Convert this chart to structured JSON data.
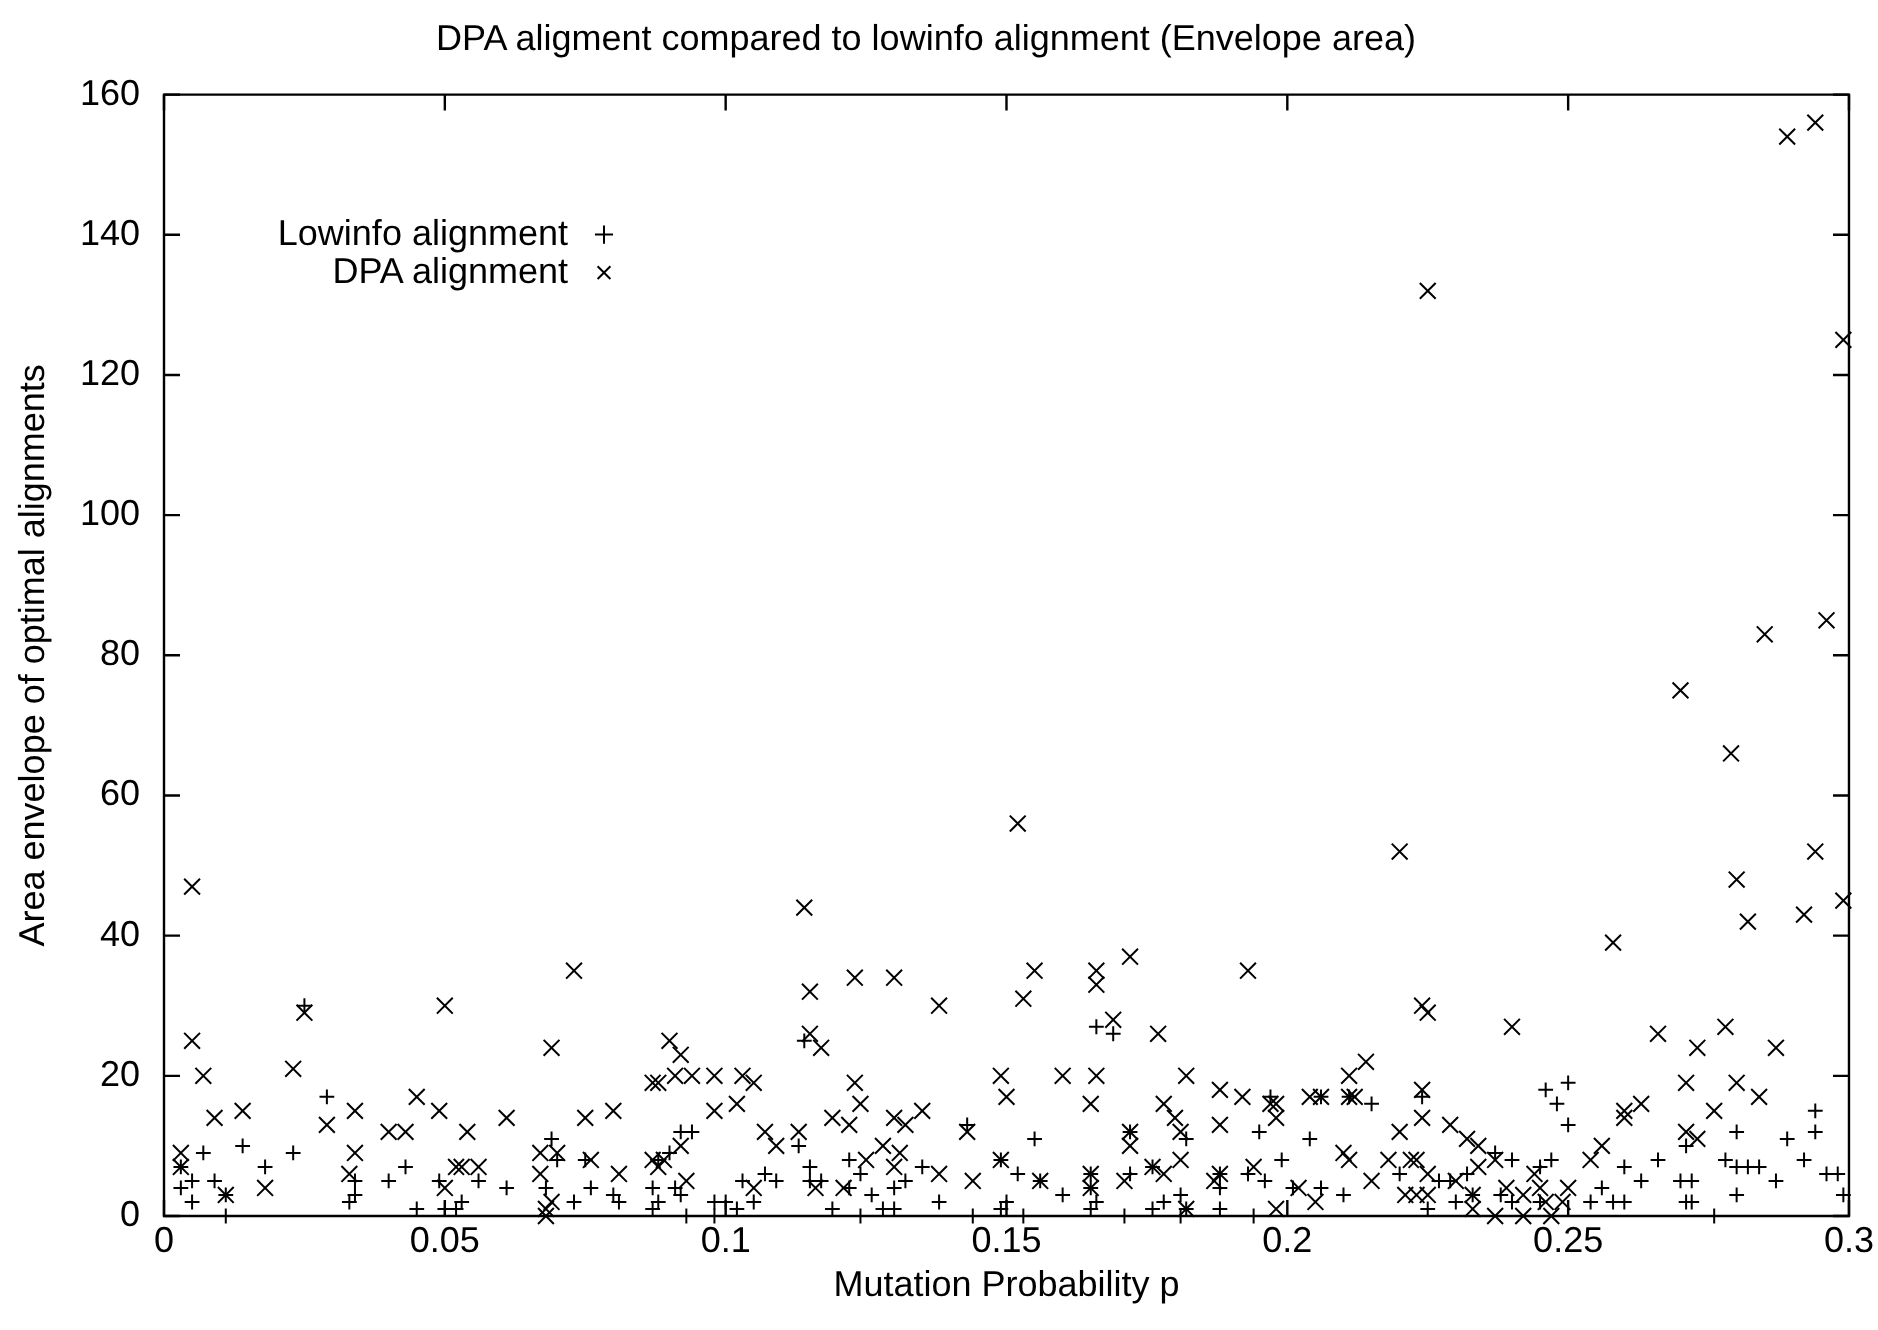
{
  "chart_data": {
    "type": "scatter",
    "title": "DPA aligment compared to lowinfo alignment (Envelope area)",
    "xlabel": "Mutation Probability p",
    "ylabel": "Area envelope of optimal alignments",
    "xlim": [
      0,
      0.3
    ],
    "xticks": [
      0,
      0.05,
      0.1,
      0.15,
      0.2,
      0.25,
      0.3
    ],
    "ylim": [
      0,
      160
    ],
    "yticks": [
      0,
      20,
      40,
      60,
      80,
      100,
      120,
      140,
      160
    ],
    "legend": "top left",
    "marker": "cross",
    "series": [
      {
        "name": "Lowinfo alignment",
        "color": "#000000",
        "x": [
          0.003,
          0.005,
          0.005,
          0.003,
          0.007,
          0.009,
          0.011,
          0.011,
          0.014,
          0.018,
          0.023,
          0.025,
          0.029,
          0.033,
          0.034,
          0.034,
          0.04,
          0.043,
          0.045,
          0.049,
          0.05,
          0.052,
          0.053,
          0.056,
          0.061,
          0.068,
          0.069,
          0.07,
          0.073,
          0.075,
          0.076,
          0.08,
          0.081,
          0.087,
          0.087,
          0.088,
          0.088,
          0.09,
          0.092,
          0.094,
          0.091,
          0.092,
          0.093,
          0.098,
          0.098,
          0.1,
          0.102,
          0.103,
          0.105,
          0.107,
          0.109,
          0.113,
          0.114,
          0.115,
          0.115,
          0.117,
          0.119,
          0.122,
          0.122,
          0.124,
          0.124,
          0.126,
          0.128,
          0.13,
          0.13,
          0.132,
          0.135,
          0.138,
          0.143,
          0.144,
          0.149,
          0.149,
          0.15,
          0.152,
          0.153,
          0.155,
          0.156,
          0.16,
          0.165,
          0.165,
          0.165,
          0.166,
          0.166,
          0.169,
          0.171,
          0.172,
          0.172,
          0.176,
          0.176,
          0.178,
          0.181,
          0.181,
          0.182,
          0.182,
          0.188,
          0.188,
          0.188,
          0.193,
          0.194,
          0.195,
          0.196,
          0.197,
          0.199,
          0.201,
          0.204,
          0.206,
          0.206,
          0.21,
          0.211,
          0.215,
          0.22,
          0.224,
          0.225,
          0.227,
          0.229,
          0.23,
          0.232,
          0.233,
          0.237,
          0.238,
          0.24,
          0.24,
          0.245,
          0.245,
          0.246,
          0.247,
          0.248,
          0.25,
          0.25,
          0.254,
          0.256,
          0.258,
          0.26,
          0.26,
          0.263,
          0.266,
          0.27,
          0.271,
          0.271,
          0.272,
          0.272,
          0.276,
          0.278,
          0.28,
          0.28,
          0.28,
          0.282,
          0.284,
          0.287,
          0.289,
          0.292,
          0.294,
          0.294,
          0.296,
          0.298,
          0.299
        ],
        "values": [
          4,
          5,
          2,
          7,
          9,
          5,
          0,
          3,
          10,
          7,
          9,
          30,
          17,
          2,
          5,
          3,
          5,
          7,
          1,
          5,
          1,
          1,
          2,
          5,
          4,
          4,
          11,
          8,
          2,
          8,
          4,
          3,
          2,
          4,
          1,
          2,
          8,
          9,
          12,
          12,
          4,
          3,
          0,
          2,
          0,
          2,
          1,
          5,
          2,
          6,
          5,
          10,
          25,
          7,
          5,
          5,
          1,
          8,
          4,
          0,
          6,
          3,
          1,
          1,
          4,
          5,
          7,
          2,
          13,
          0,
          1,
          8,
          2,
          6,
          0,
          11,
          5,
          3,
          1,
          4,
          6,
          2,
          27,
          26,
          0,
          6,
          12,
          1,
          7,
          2,
          0,
          3,
          1,
          11,
          1,
          4,
          6,
          6,
          0,
          12,
          5,
          17,
          8,
          4,
          11,
          4,
          17,
          3,
          17,
          16,
          6,
          17,
          1,
          5,
          5,
          2,
          6,
          3,
          9,
          3,
          8,
          2,
          7,
          2,
          18,
          8,
          16,
          19,
          13,
          2,
          4,
          2,
          2,
          7,
          5,
          8,
          5,
          10,
          2,
          5,
          2,
          0,
          8,
          12,
          7,
          3,
          7,
          7,
          5,
          11,
          8,
          15,
          12,
          6,
          6,
          3
        ]
      },
      {
        "name": "DPA alignment",
        "color": "#000000",
        "x": [
          0.003,
          0.003,
          0.005,
          0.005,
          0.007,
          0.009,
          0.011,
          0.014,
          0.018,
          0.023,
          0.025,
          0.029,
          0.033,
          0.034,
          0.034,
          0.04,
          0.043,
          0.045,
          0.049,
          0.05,
          0.05,
          0.052,
          0.053,
          0.054,
          0.056,
          0.061,
          0.067,
          0.067,
          0.068,
          0.068,
          0.069,
          0.069,
          0.07,
          0.073,
          0.075,
          0.076,
          0.08,
          0.081,
          0.087,
          0.088,
          0.087,
          0.088,
          0.089,
          0.09,
          0.091,
          0.092,
          0.092,
          0.093,
          0.094,
          0.098,
          0.098,
          0.102,
          0.103,
          0.105,
          0.105,
          0.107,
          0.109,
          0.113,
          0.114,
          0.115,
          0.115,
          0.116,
          0.117,
          0.119,
          0.121,
          0.122,
          0.123,
          0.123,
          0.124,
          0.125,
          0.128,
          0.13,
          0.13,
          0.13,
          0.131,
          0.132,
          0.135,
          0.138,
          0.138,
          0.143,
          0.144,
          0.149,
          0.149,
          0.15,
          0.152,
          0.153,
          0.155,
          0.156,
          0.16,
          0.165,
          0.165,
          0.165,
          0.166,
          0.166,
          0.166,
          0.169,
          0.171,
          0.172,
          0.172,
          0.172,
          0.176,
          0.177,
          0.178,
          0.178,
          0.18,
          0.181,
          0.181,
          0.182,
          0.182,
          0.187,
          0.188,
          0.188,
          0.188,
          0.192,
          0.193,
          0.194,
          0.197,
          0.198,
          0.198,
          0.198,
          0.202,
          0.204,
          0.205,
          0.206,
          0.21,
          0.211,
          0.211,
          0.211,
          0.212,
          0.214,
          0.215,
          0.218,
          0.22,
          0.22,
          0.221,
          0.222,
          0.223,
          0.223,
          0.224,
          0.225,
          0.224,
          0.224,
          0.225,
          0.225,
          0.225,
          0.229,
          0.23,
          0.232,
          0.233,
          0.233,
          0.234,
          0.234,
          0.237,
          0.237,
          0.239,
          0.24,
          0.242,
          0.242,
          0.244,
          0.245,
          0.246,
          0.247,
          0.249,
          0.25,
          0.254,
          0.256,
          0.258,
          0.26,
          0.26,
          0.263,
          0.266,
          0.27,
          0.271,
          0.271,
          0.273,
          0.273,
          0.276,
          0.278,
          0.279,
          0.28,
          0.28,
          0.282,
          0.284,
          0.285,
          0.287,
          0.289,
          0.292,
          0.294,
          0.294,
          0.296,
          0.299,
          0.299
        ],
        "values": [
          9,
          7,
          47,
          25,
          20,
          14,
          3,
          15,
          4,
          21,
          29,
          13,
          6,
          15,
          9,
          12,
          12,
          17,
          15,
          30,
          4,
          7,
          7,
          12,
          7,
          14,
          9,
          6,
          1,
          0,
          2,
          24,
          9,
          35,
          14,
          8,
          15,
          6,
          19,
          19,
          8,
          7,
          8,
          25,
          20,
          23,
          10,
          5,
          20,
          20,
          15,
          16,
          20,
          19,
          4,
          12,
          10,
          12,
          44,
          32,
          26,
          4,
          24,
          14,
          4,
          13,
          34,
          19,
          16,
          8,
          10,
          34,
          14,
          7,
          9,
          13,
          15,
          30,
          6,
          12,
          5,
          8,
          20,
          17,
          56,
          31,
          35,
          5,
          20,
          16,
          6,
          4,
          35,
          33,
          20,
          28,
          5,
          37,
          12,
          10,
          7,
          26,
          16,
          6,
          14,
          12,
          8,
          20,
          1,
          5,
          18,
          13,
          6,
          17,
          35,
          7,
          16,
          16,
          14,
          1,
          4,
          17,
          2,
          17,
          9,
          20,
          17,
          8,
          17,
          22,
          5,
          8,
          52,
          12,
          3,
          8,
          8,
          3,
          30,
          29,
          18,
          14,
          132,
          3,
          6,
          13,
          5,
          11,
          1,
          3,
          10,
          7,
          8,
          0,
          4,
          27,
          0,
          3,
          6,
          4,
          2,
          0,
          2,
          4,
          8,
          10,
          39,
          15,
          14,
          16,
          26,
          75,
          19,
          12,
          24,
          11,
          15,
          27,
          66,
          48,
          19,
          42,
          17,
          83,
          24,
          154,
          43,
          52,
          156,
          85,
          125,
          45
        ]
      }
    ]
  }
}
